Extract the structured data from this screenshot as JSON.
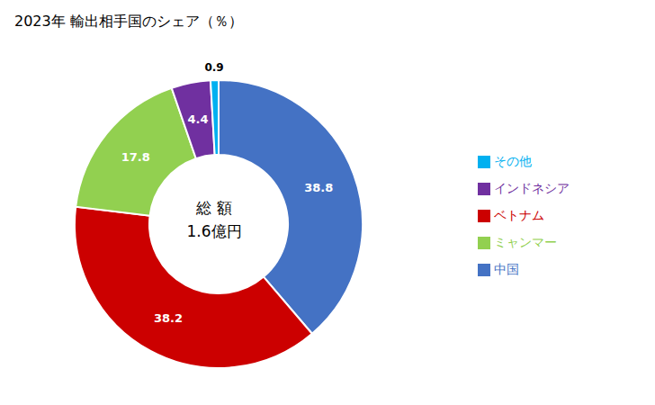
{
  "chart_data": {
    "type": "pie",
    "title": "2023年 輸出相手国のシェア（％）",
    "categories": [
      "中国",
      "ベトナム",
      "ミャンマー",
      "インドネシア",
      "その他"
    ],
    "values": [
      38.8,
      38.2,
      17.8,
      4.4,
      0.9
    ],
    "colors": [
      "#4472C4",
      "#CC0000",
      "#92D050",
      "#7030A0",
      "#00B0F0"
    ],
    "annotations": [
      "総 額",
      "1.6億円"
    ],
    "data_labels": true,
    "legend": "right"
  }
}
